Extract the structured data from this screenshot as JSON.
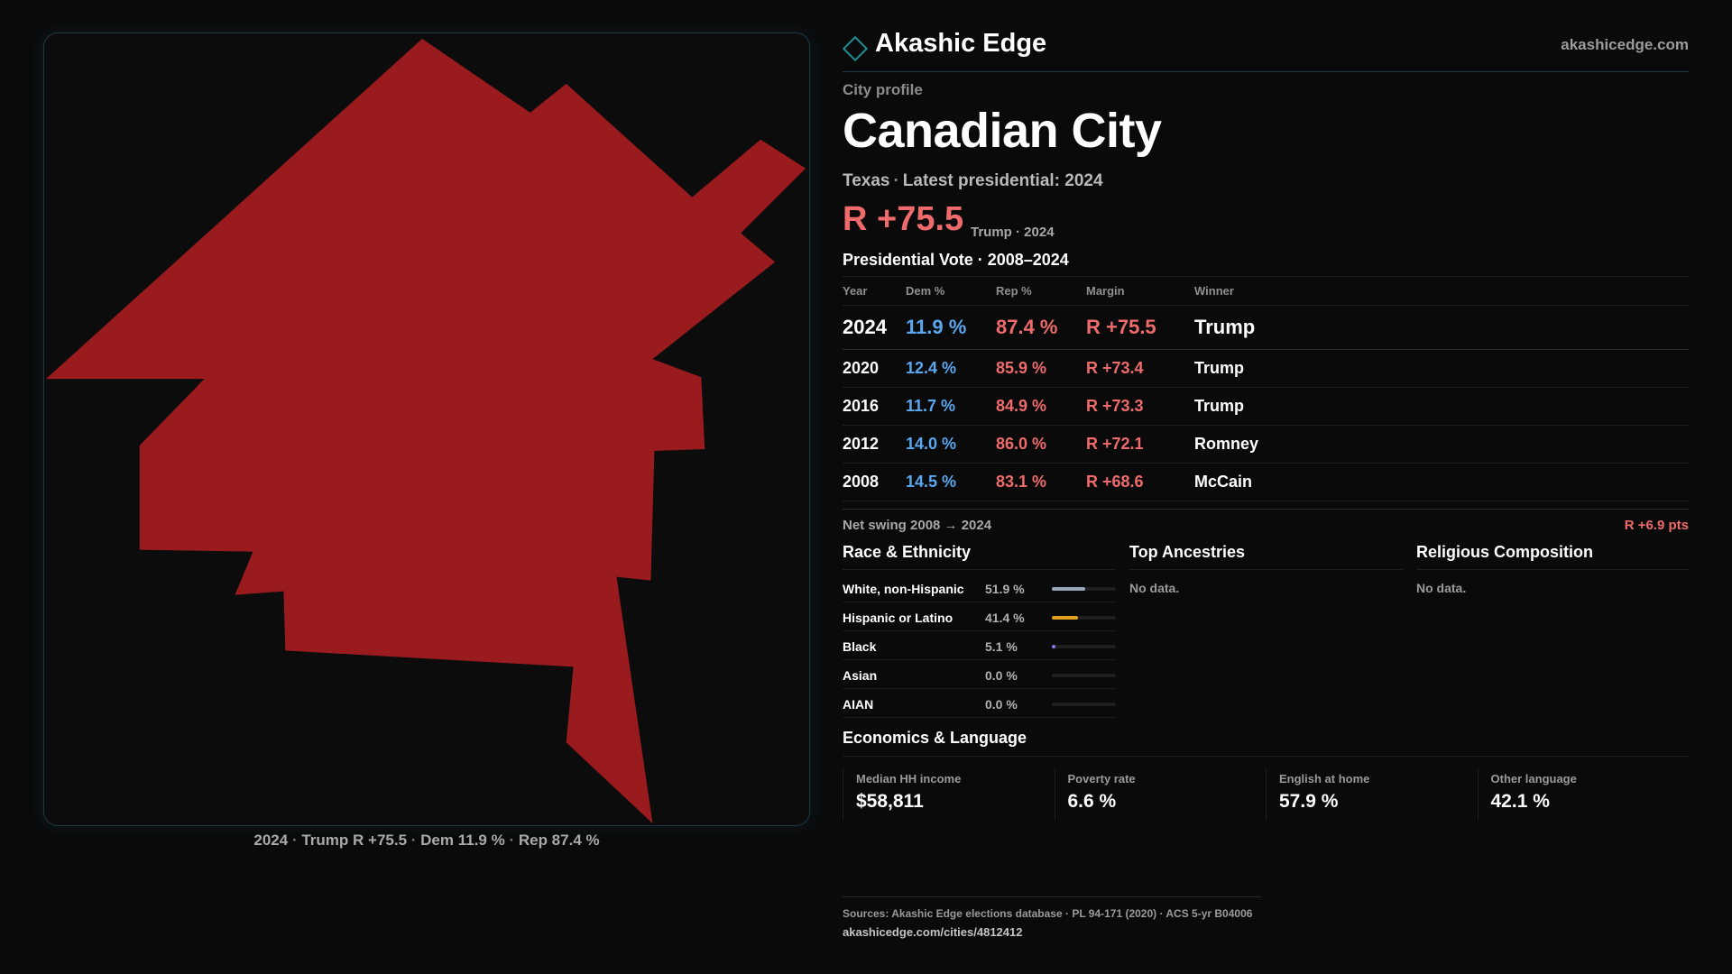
{
  "brand": {
    "name": "Akashic Edge",
    "site": "akashicedge.com",
    "accent": "#1f8e95"
  },
  "map": {
    "fill_color": "#9a1b1e",
    "caption": {
      "year": "2024",
      "winner": "Trump",
      "margin": "R +75.5",
      "dem": "Dem 11.9 %",
      "rep": "Rep 87.4 %"
    }
  },
  "profile": {
    "eyebrow": "City profile",
    "name": "Canadian City",
    "state": "Texas",
    "latest": "Latest presidential: 2024",
    "margin": "R +75.5",
    "margin_note": "Trump · 2024"
  },
  "vote": {
    "title": "Presidential Vote · 2008–2024",
    "headers": [
      "Year",
      "Dem %",
      "Rep %",
      "Margin",
      "Winner"
    ],
    "rows": [
      {
        "year": "2024",
        "dem": "11.9 %",
        "rep": "87.4 %",
        "margin": "R +75.5",
        "winner": "Trump"
      },
      {
        "year": "2020",
        "dem": "12.4 %",
        "rep": "85.9 %",
        "margin": "R +73.4",
        "winner": "Trump"
      },
      {
        "year": "2016",
        "dem": "11.7 %",
        "rep": "84.9 %",
        "margin": "R +73.3",
        "winner": "Trump"
      },
      {
        "year": "2012",
        "dem": "14.0 %",
        "rep": "86.0 %",
        "margin": "R +72.1",
        "winner": "Romney"
      },
      {
        "year": "2008",
        "dem": "14.5 %",
        "rep": "83.1 %",
        "margin": "R +68.6",
        "winner": "McCain"
      }
    ],
    "swing_label": "Net swing 2008 → 2024",
    "swing_value": "R +6.9 pts"
  },
  "race": {
    "title": "Race & Ethnicity",
    "rows": [
      {
        "label": "White, non-Hispanic",
        "pct": "51.9 %",
        "share": 0.519,
        "color": "#9aa7b8"
      },
      {
        "label": "Hispanic or Latino",
        "pct": "41.4 %",
        "share": 0.414,
        "color": "#e0a020"
      },
      {
        "label": "Black",
        "pct": "5.1 %",
        "share": 0.051,
        "color": "#8a7be0"
      },
      {
        "label": "Asian",
        "pct": "0.0 %",
        "share": 0.0,
        "color": "#5aa7ef"
      },
      {
        "label": "AIAN",
        "pct": "0.0 %",
        "share": 0.0,
        "color": "#5aa7ef"
      }
    ]
  },
  "ancestry": {
    "title": "Top Ancestries",
    "empty": "No data."
  },
  "religion": {
    "title": "Religious Composition",
    "empty": "No data."
  },
  "economics": {
    "title": "Economics & Language",
    "items": [
      {
        "label": "Median HH income",
        "value": "$58,811"
      },
      {
        "label": "Poverty rate",
        "value": "6.6 %"
      },
      {
        "label": "English at home",
        "value": "57.9 %"
      },
      {
        "label": "Other language",
        "value": "42.1 %"
      }
    ]
  },
  "footer": {
    "sources": "Sources: Akashic Edge elections database · PL 94-171 (2020) · ACS 5-yr B04006",
    "url": "akashicedge.com/cities/4812412"
  }
}
